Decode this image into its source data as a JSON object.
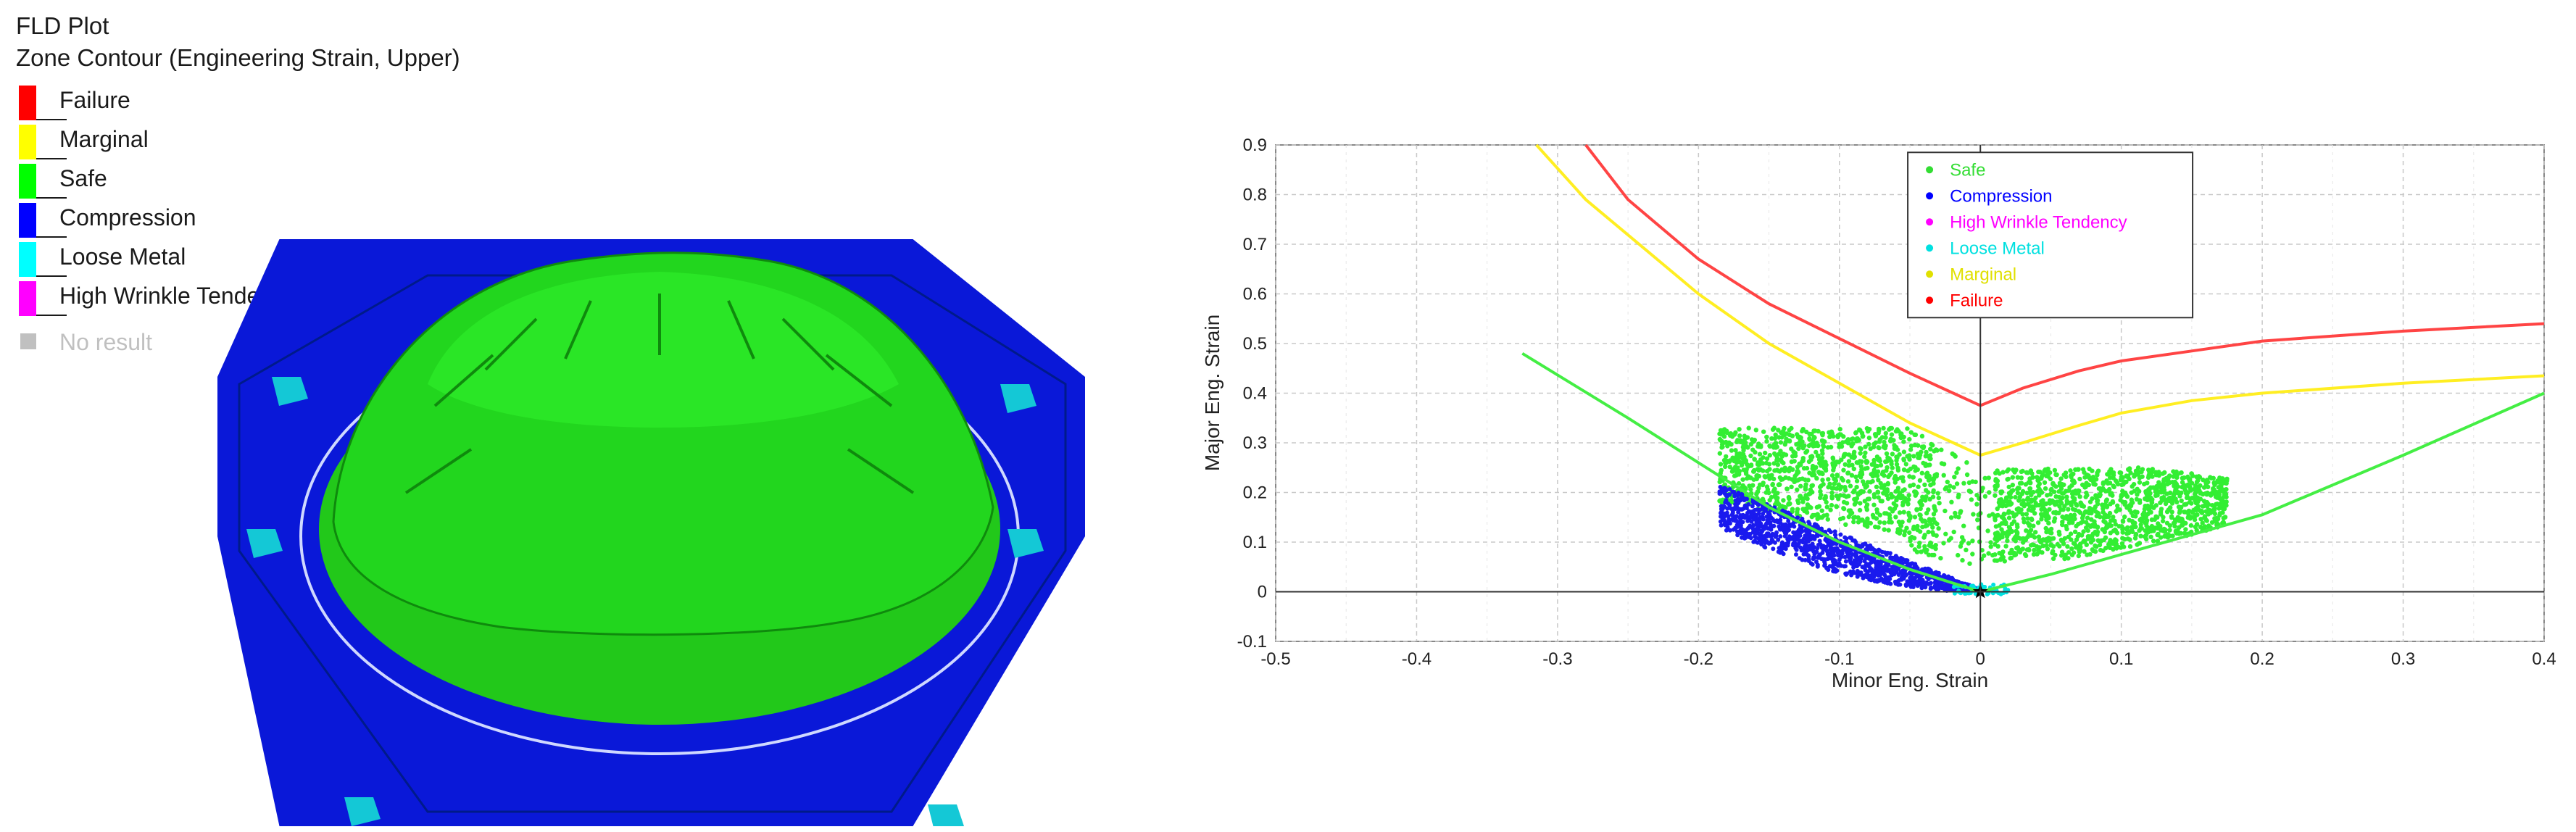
{
  "left": {
    "title": "FLD Plot",
    "subtitle": "Zone Contour (Engineering Strain, Upper)",
    "zones": [
      {
        "label": "Failure",
        "color": "#ff0000"
      },
      {
        "label": "Marginal",
        "color": "#ffff00"
      },
      {
        "label": "Safe",
        "color": "#00ff00"
      },
      {
        "label": "Compression",
        "color": "#0000ff"
      },
      {
        "label": "Loose Metal",
        "color": "#00ffff"
      },
      {
        "label": "High Wrinkle Tendency",
        "color": "#ff00ff"
      }
    ],
    "no_result": {
      "label": "No result",
      "color": "#c0c0c0"
    }
  },
  "chart_data": {
    "type": "scatter",
    "xlabel": "Minor Eng. Strain",
    "ylabel": "Major Eng. Strain",
    "xlim": [
      -0.5,
      0.4
    ],
    "ylim": [
      -0.1,
      0.9
    ],
    "xticks": [
      -0.5,
      -0.4,
      -0.3,
      -0.2,
      -0.1,
      0,
      0.1,
      0.2,
      0.3,
      0.4
    ],
    "yticks": [
      -0.1,
      0,
      0.1,
      0.2,
      0.3,
      0.4,
      0.5,
      0.6,
      0.7,
      0.8,
      0.9
    ],
    "grid": true,
    "legend_position": "top-center",
    "legend": [
      {
        "name": "Safe",
        "color": "#33dd33"
      },
      {
        "name": "Compression",
        "color": "#0000ff"
      },
      {
        "name": "High Wrinkle Tendency",
        "color": "#ff00ff"
      },
      {
        "name": "Loose Metal",
        "color": "#00e0e0"
      },
      {
        "name": "Marginal",
        "color": "#e0e000"
      },
      {
        "name": "Failure",
        "color": "#ff0000"
      }
    ],
    "curves": [
      {
        "color": "#ff4444",
        "points": [
          [
            -0.28,
            0.9
          ],
          [
            -0.25,
            0.79
          ],
          [
            -0.2,
            0.67
          ],
          [
            -0.15,
            0.58
          ],
          [
            -0.1,
            0.51
          ],
          [
            -0.05,
            0.44
          ],
          [
            0,
            0.375
          ],
          [
            0.03,
            0.41
          ],
          [
            0.07,
            0.445
          ],
          [
            0.1,
            0.465
          ],
          [
            0.15,
            0.485
          ],
          [
            0.2,
            0.505
          ],
          [
            0.3,
            0.525
          ],
          [
            0.4,
            0.54
          ]
        ]
      },
      {
        "color": "#ffee22",
        "points": [
          [
            -0.315,
            0.9
          ],
          [
            -0.28,
            0.79
          ],
          [
            -0.2,
            0.6
          ],
          [
            -0.15,
            0.5
          ],
          [
            -0.1,
            0.42
          ],
          [
            -0.05,
            0.34
          ],
          [
            0,
            0.275
          ],
          [
            0.03,
            0.3
          ],
          [
            0.07,
            0.335
          ],
          [
            0.1,
            0.36
          ],
          [
            0.15,
            0.385
          ],
          [
            0.2,
            0.4
          ],
          [
            0.3,
            0.42
          ],
          [
            0.4,
            0.435
          ]
        ]
      },
      {
        "color": "#44ee44",
        "points": [
          [
            -0.325,
            0.48
          ],
          [
            -0.25,
            0.35
          ],
          [
            -0.2,
            0.26
          ],
          [
            -0.15,
            0.17
          ],
          [
            -0.1,
            0.1
          ],
          [
            -0.05,
            0.045
          ],
          [
            0,
            0
          ],
          [
            0.05,
            0.035
          ],
          [
            0.1,
            0.075
          ],
          [
            0.15,
            0.115
          ],
          [
            0.2,
            0.155
          ],
          [
            0.3,
            0.275
          ],
          [
            0.4,
            0.4
          ]
        ]
      }
    ],
    "clusters": [
      {
        "zone": "Safe",
        "color": "#33ee33",
        "x_range": [
          -0.185,
          0.175
        ],
        "y_range": [
          0.05,
          0.34
        ]
      },
      {
        "zone": "Compression",
        "color": "#1a1aee",
        "x_range": [
          -0.185,
          0.0
        ],
        "y_range": [
          0.0,
          0.22
        ]
      },
      {
        "zone": "Loose Metal",
        "color": "#00e0e0",
        "x_range": [
          -0.02,
          0.02
        ],
        "y_range": [
          -0.005,
          0.015
        ]
      }
    ],
    "origin_marker": {
      "x": 0,
      "y": 0,
      "shape": "star",
      "color": "#000000"
    }
  }
}
